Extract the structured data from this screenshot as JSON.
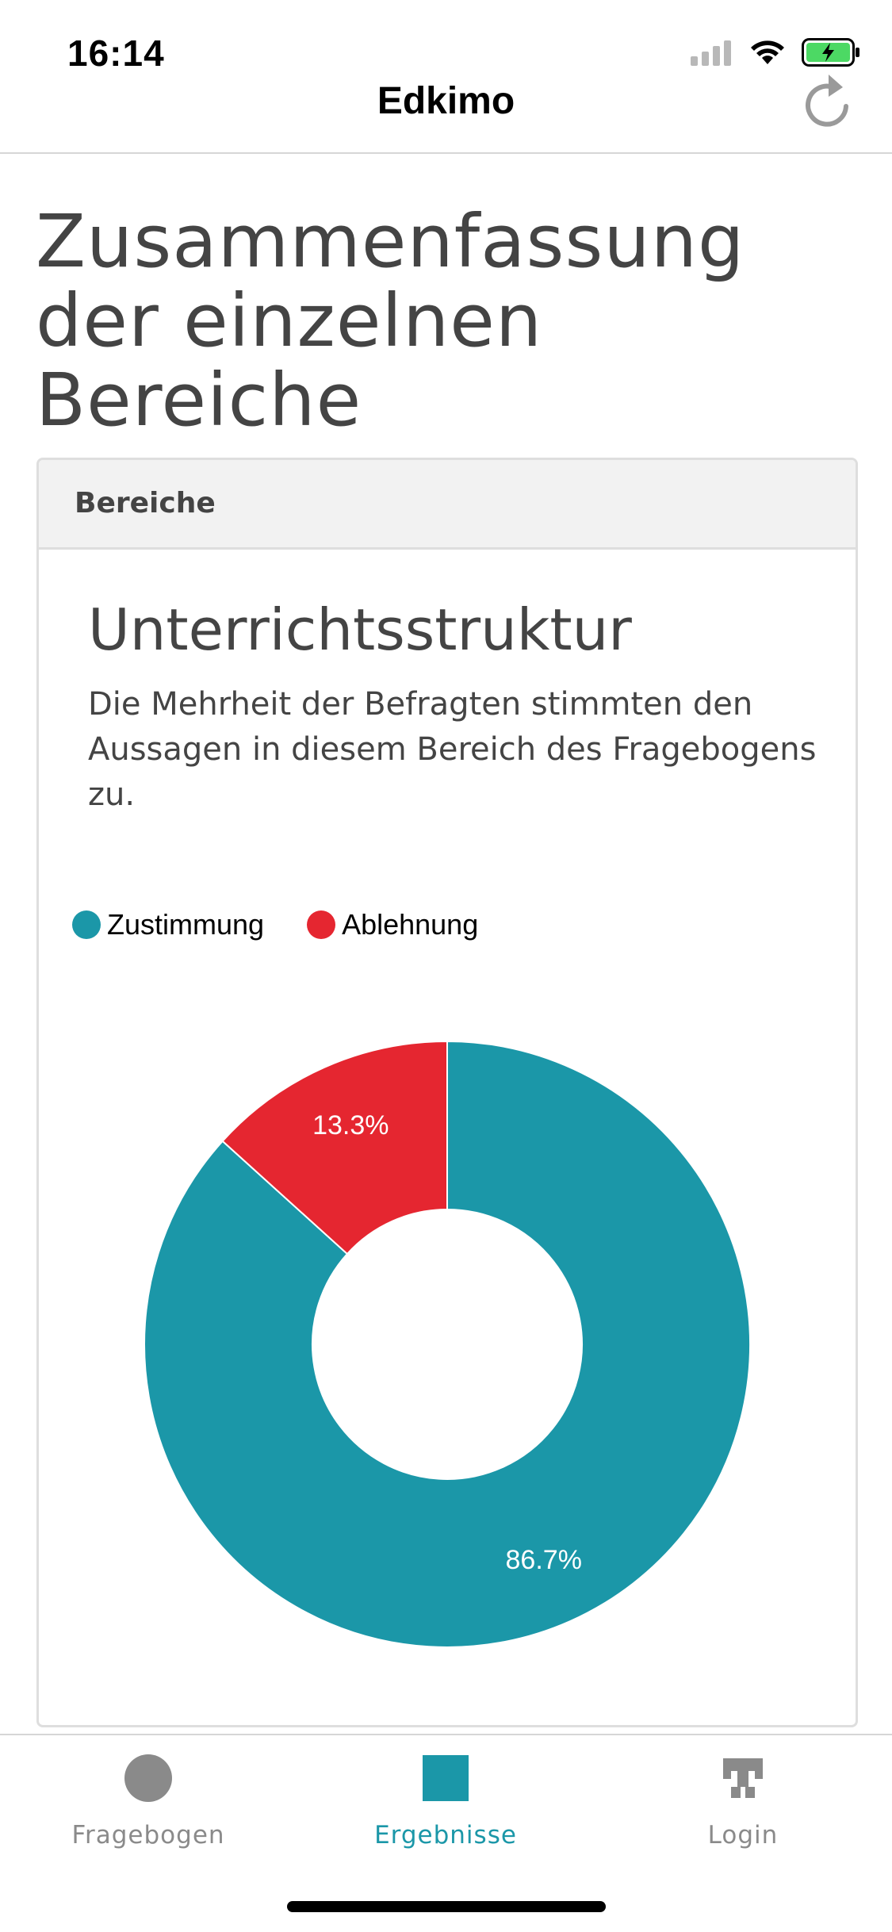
{
  "status_bar": {
    "time": "16:14"
  },
  "nav": {
    "title": "Edkimo"
  },
  "page": {
    "title": "Zusammenfassung der einzelnen Bereiche"
  },
  "card": {
    "header": "Bereiche",
    "section_title": "Unterrichtsstruktur",
    "section_description": "Die Mehrheit der Befragten stimmten den Aussagen in diesem Bereich des Fragebogens zu."
  },
  "chart_data": {
    "type": "pie",
    "donut": true,
    "title": "",
    "slices": [
      {
        "name": "Zustimmung",
        "value": 86.7,
        "label": "86.7%",
        "color": "#1b97a8"
      },
      {
        "name": "Ablehnung",
        "value": 13.3,
        "label": "13.3%",
        "color": "#e52630"
      }
    ],
    "legend_position": "top-left"
  },
  "tabs": [
    {
      "label": "Fragebogen",
      "icon": "circle-icon",
      "active": false
    },
    {
      "label": "Ergebnisse",
      "icon": "square-icon",
      "active": true
    },
    {
      "label": "Login",
      "icon": "login-icon",
      "active": false
    }
  ],
  "colors": {
    "accent": "#1b97a8",
    "negative": "#e52630",
    "inactive": "#8a8a8a"
  }
}
